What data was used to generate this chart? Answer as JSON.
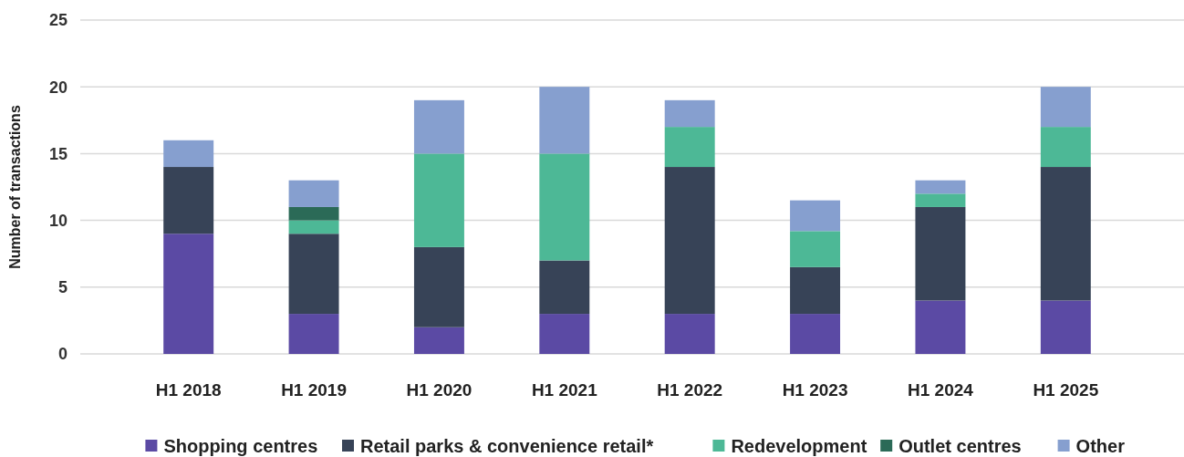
{
  "chart_data": {
    "type": "bar",
    "stacked": true,
    "ylabel": "Number of transactions",
    "categories": [
      "H1 2018",
      "H1 2019",
      "H1 2020",
      "H1 2021",
      "H1 2022",
      "H1 2023",
      "H1 2024",
      "H1 2025"
    ],
    "series": [
      {
        "name": "Shopping centres",
        "color": "#5b4aa4",
        "values": [
          9,
          3,
          2,
          3,
          3,
          3,
          4,
          4
        ]
      },
      {
        "name": "Retail parks & convenience retail*",
        "color": "#374357",
        "values": [
          5,
          6,
          6,
          4,
          11,
          3.5,
          7,
          10
        ]
      },
      {
        "name": "Redevelopment",
        "color": "#4db896",
        "values": [
          0,
          1,
          7,
          8,
          3,
          2.7,
          1,
          3
        ]
      },
      {
        "name": "Outlet centres",
        "color": "#2b6a57",
        "values": [
          0,
          1,
          0,
          0,
          0,
          0,
          0,
          0
        ]
      },
      {
        "name": "Other",
        "color": "#869fcf",
        "values": [
          2,
          2,
          4,
          5,
          2,
          2.3,
          1,
          3
        ]
      }
    ],
    "ylim": [
      0,
      25
    ],
    "yticks": [
      0,
      5,
      10,
      15,
      20,
      25
    ],
    "grid": "y",
    "legend": "bottom"
  }
}
